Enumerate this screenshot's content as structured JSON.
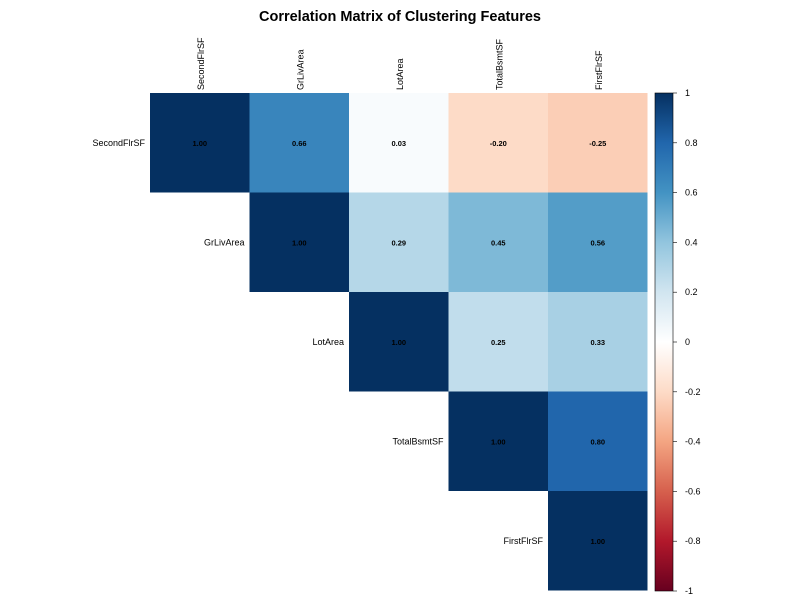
{
  "chart_data": {
    "type": "heatmap",
    "title": "Correlation Matrix of Clustering Features",
    "layout": "upper-triangle",
    "variables": [
      "SecondFlrSF",
      "GrLivArea",
      "LotArea",
      "TotalBsmtSF",
      "FirstFlrSF"
    ],
    "matrix": [
      [
        1.0,
        0.66,
        0.03,
        -0.2,
        -0.25
      ],
      [
        0.66,
        1.0,
        0.29,
        0.45,
        0.56
      ],
      [
        0.03,
        0.29,
        1.0,
        0.25,
        0.33
      ],
      [
        -0.2,
        0.45,
        0.25,
        1.0,
        0.8
      ],
      [
        -0.25,
        0.56,
        0.33,
        0.8,
        1.0
      ]
    ],
    "value_format": "0.00",
    "colorbar": {
      "range": [
        -1,
        1
      ],
      "ticks": [
        "1",
        "0.8",
        "0.6",
        "0.4",
        "0.2",
        "0",
        "-0.2",
        "-0.4",
        "-0.6",
        "-0.8",
        "-1"
      ],
      "colors": [
        "#67001F",
        "#B2182B",
        "#D6604D",
        "#F4A582",
        "#FDDBC7",
        "#FFFFFF",
        "#D1E5F0",
        "#92C5DE",
        "#4393C3",
        "#2166AC",
        "#053061"
      ]
    }
  }
}
